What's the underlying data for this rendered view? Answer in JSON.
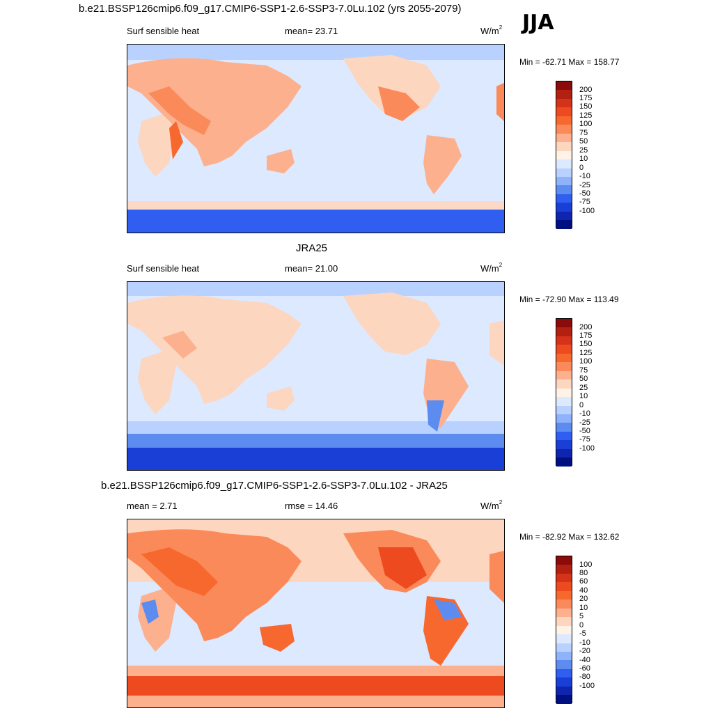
{
  "header": {
    "main_title": "b.e21.BSSP126cmip6.f09_g17.CMIP6-SSP1-2.6-SSP3-7.0Lu.102 (yrs 2055-2079)",
    "season": "JJA"
  },
  "panels": [
    {
      "title": "",
      "left_label": "Surf sensible heat",
      "center_label": "mean=  23.71",
      "units": "W/m",
      "units_sup": "2",
      "minmax": "Min = -62.71 Max = 158.77",
      "colorbar_labels": [
        "200",
        "175",
        "150",
        "125",
        "100",
        "75",
        "50",
        "25",
        "10",
        "0",
        "-10",
        "-25",
        "-50",
        "-75",
        "-100"
      ]
    },
    {
      "title": "JRA25",
      "left_label": "Surf sensible heat",
      "center_label": "mean=  21.00",
      "units": "W/m",
      "units_sup": "2",
      "minmax": "Min = -72.90 Max = 113.49",
      "colorbar_labels": [
        "200",
        "175",
        "150",
        "125",
        "100",
        "75",
        "50",
        "25",
        "10",
        "0",
        "-10",
        "-25",
        "-50",
        "-75",
        "-100"
      ]
    },
    {
      "title": "b.e21.BSSP126cmip6.f09_g17.CMIP6-SSP1-2.6-SSP3-7.0Lu.102 - JRA25",
      "left_label": "mean =   2.71",
      "center_label": "rmse =  14.46",
      "units": "W/m",
      "units_sup": "2",
      "minmax": "Min = -82.92 Max = 132.62",
      "colorbar_labels": [
        "100",
        "80",
        "60",
        "40",
        "20",
        "10",
        "5",
        "0",
        "-5",
        "-10",
        "-20",
        "-40",
        "-60",
        "-80",
        "-100"
      ]
    }
  ],
  "colors": {
    "scale": [
      "#8b0a0a",
      "#b22011",
      "#d5321a",
      "#ee4a1f",
      "#f7682e",
      "#fb8a5a",
      "#fcb08e",
      "#fdd6c0",
      "#fff2e6",
      "#dce9ff",
      "#b9d1ff",
      "#8fb3fa",
      "#5d8cf0",
      "#2f5ef0",
      "#1a3fd6",
      "#0f25b0",
      "#001080"
    ]
  }
}
